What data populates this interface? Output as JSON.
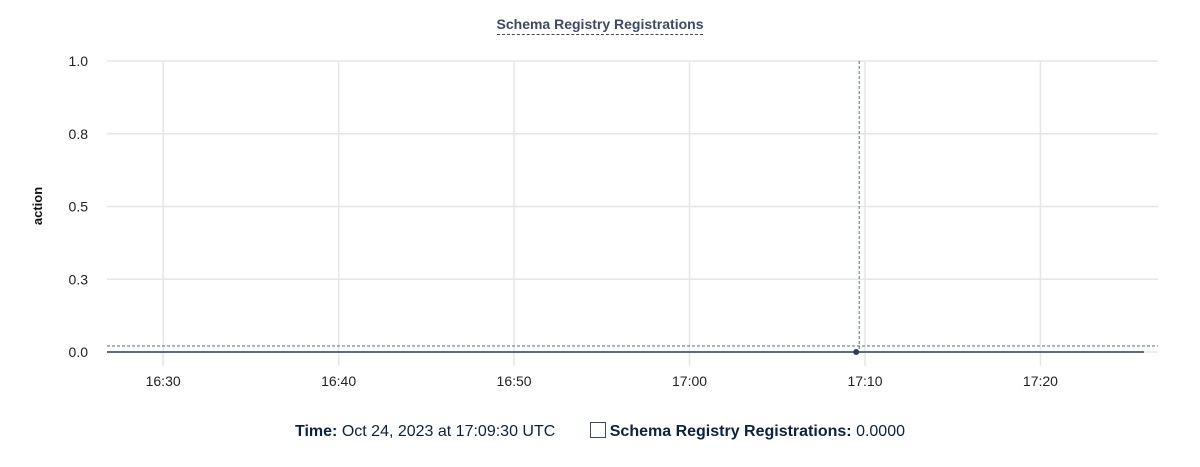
{
  "chart_data": {
    "type": "line",
    "title": "Schema Registry Registrations",
    "ylabel": "action",
    "xlabel": "",
    "ylim": [
      0,
      1
    ],
    "yticks": [
      0,
      0.25,
      0.5,
      0.75,
      1
    ],
    "ytick_labels": [
      "0.0",
      "0.3",
      "0.5",
      "0.8",
      "1.0"
    ],
    "xlim": [
      "16:26:48",
      "17:26:42"
    ],
    "xtick_labels": [
      "16:30",
      "16:40",
      "16:50",
      "17:00",
      "17:10",
      "17:20"
    ],
    "grid": true,
    "series": [
      {
        "name": "Schema Registry Registrations",
        "x": [
          "16:26:48",
          "17:25:54"
        ],
        "values": [
          0,
          0
        ],
        "color": "#2c3e60"
      }
    ],
    "hover": {
      "x": "17:09:30",
      "value": 0
    }
  },
  "legend": {
    "time_label": "Time:",
    "time_value": "Oct 24, 2023 at 17:09:30 UTC",
    "series_label": "Schema Registry Registrations:",
    "series_value": "0.0000"
  }
}
